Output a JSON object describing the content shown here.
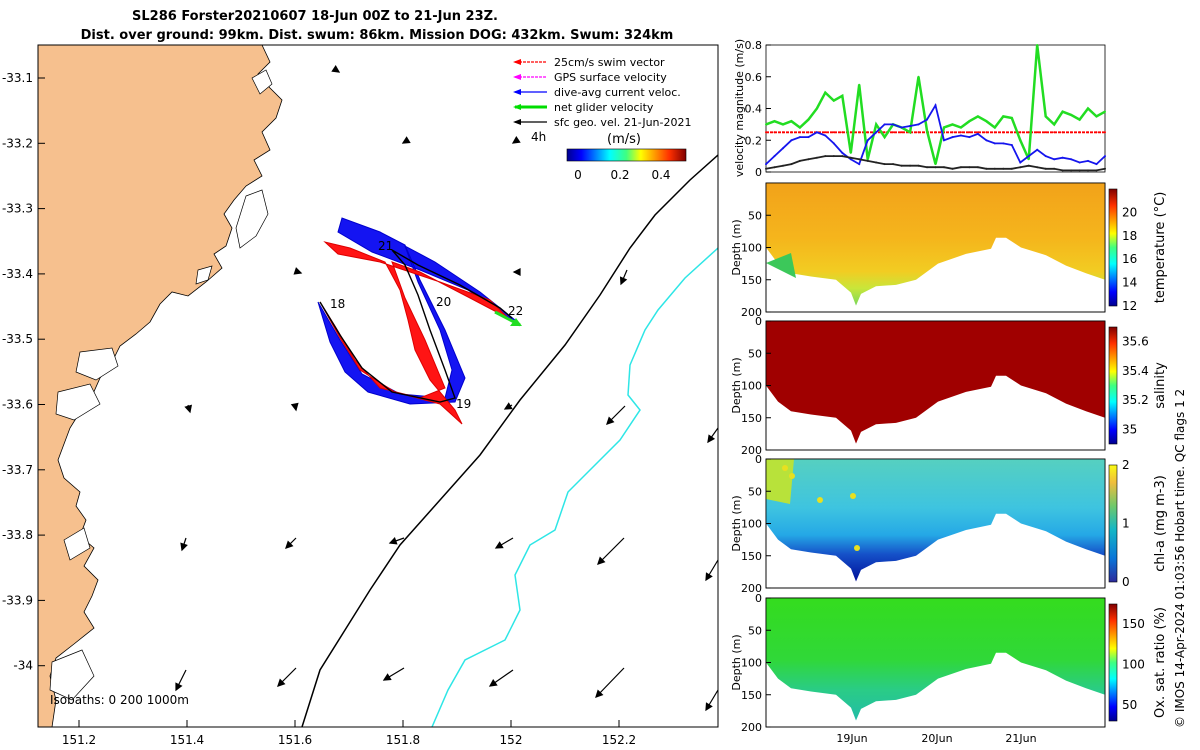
{
  "title": {
    "line1": "SL286 Forster20210607 18-Jun 00Z to 21-Jun 23Z.",
    "line2": "Dist. over ground: 99km. Dist. swum: 86km. Mission DOG: 432km. Swum: 324km"
  },
  "map": {
    "lon_ticks": [
      "151.2",
      "151.4",
      "151.6",
      "151.8",
      "152",
      "152.2"
    ],
    "lat_ticks": [
      "-33.1",
      "-33.2",
      "-33.3",
      "-33.4",
      "-33.5",
      "-33.6",
      "-33.7",
      "-33.8",
      "-33.9",
      "-34"
    ],
    "legend": [
      {
        "label": "25cm/s swim vector",
        "color": "#ff0000"
      },
      {
        "label": "GPS surface velocity",
        "color": "#ff00ff"
      },
      {
        "label": "dive-avg current veloc.",
        "color": "#0000ff"
      },
      {
        "label": "net glider velocity",
        "color": "#00dd00"
      },
      {
        "label": "sfc geo. vel. 21-Jun-2021",
        "color": "#000000"
      }
    ],
    "interval_label": "4h",
    "colorbar": {
      "unit": "(m/s)",
      "ticks": [
        "0",
        "0.2",
        "0.4"
      ]
    },
    "day_labels": [
      "18",
      "19",
      "20",
      "21",
      "22"
    ],
    "isobaths": "Isobaths: 0  200  1000m",
    "land_color": "#f6c08e"
  },
  "chart_data": [
    {
      "type": "line",
      "name": "velocity-magnitude",
      "ylabel": "velocity magnitude (m/s)",
      "ylim": [
        0,
        0.8
      ],
      "yticks": [
        "0",
        "0.2",
        "0.4",
        "0.6",
        "0.8"
      ],
      "x_days": [
        0,
        0.1,
        0.2,
        0.3,
        0.4,
        0.5,
        0.6,
        0.7,
        0.8,
        0.9,
        1.0,
        1.1,
        1.2,
        1.3,
        1.4,
        1.5,
        1.6,
        1.7,
        1.8,
        1.9,
        2.0,
        2.1,
        2.2,
        2.3,
        2.4,
        2.5,
        2.6,
        2.7,
        2.8,
        2.9,
        3.0,
        3.1,
        3.2,
        3.3,
        3.4,
        3.5,
        3.6,
        3.7,
        3.8,
        3.9,
        4.0
      ],
      "series": [
        {
          "name": "swim vector 25cm/s",
          "color": "#ff0000",
          "values": [
            0.25,
            0.25,
            0.25,
            0.25,
            0.25,
            0.25,
            0.25,
            0.25,
            0.25,
            0.25,
            0.25,
            0.25,
            0.25,
            0.25,
            0.25,
            0.25,
            0.25,
            0.25,
            0.25,
            0.25,
            0.25,
            0.25,
            0.25,
            0.25,
            0.25,
            0.25,
            0.25,
            0.25,
            0.25,
            0.25,
            0.25,
            0.25,
            0.25,
            0.25,
            0.25,
            0.25,
            0.25,
            0.25,
            0.25,
            0.25,
            0.25
          ]
        },
        {
          "name": "net glider velocity",
          "color": "#22dd22",
          "values": [
            0.3,
            0.32,
            0.3,
            0.32,
            0.28,
            0.33,
            0.4,
            0.5,
            0.45,
            0.48,
            0.12,
            0.55,
            0.08,
            0.3,
            0.22,
            0.3,
            0.28,
            0.25,
            0.6,
            0.26,
            0.05,
            0.28,
            0.3,
            0.28,
            0.32,
            0.35,
            0.32,
            0.28,
            0.35,
            0.34,
            0.2,
            0.08,
            0.8,
            0.35,
            0.3,
            0.38,
            0.36,
            0.33,
            0.4,
            0.35,
            0.38
          ]
        },
        {
          "name": "dive-avg current",
          "color": "#1515ee",
          "values": [
            0.05,
            0.1,
            0.15,
            0.2,
            0.22,
            0.22,
            0.25,
            0.23,
            0.18,
            0.12,
            0.08,
            0.05,
            0.2,
            0.25,
            0.3,
            0.3,
            0.28,
            0.29,
            0.3,
            0.33,
            0.42,
            0.2,
            0.22,
            0.23,
            0.22,
            0.24,
            0.2,
            0.18,
            0.18,
            0.17,
            0.06,
            0.1,
            0.14,
            0.1,
            0.08,
            0.09,
            0.08,
            0.06,
            0.07,
            0.05,
            0.1
          ]
        },
        {
          "name": "sfc geo vel",
          "color": "#222222",
          "values": [
            0.02,
            0.03,
            0.04,
            0.05,
            0.07,
            0.08,
            0.09,
            0.1,
            0.1,
            0.1,
            0.09,
            0.08,
            0.07,
            0.06,
            0.05,
            0.05,
            0.04,
            0.04,
            0.04,
            0.03,
            0.03,
            0.03,
            0.02,
            0.03,
            0.03,
            0.03,
            0.02,
            0.02,
            0.02,
            0.02,
            0.03,
            0.04,
            0.03,
            0.02,
            0.02,
            0.01,
            0.01,
            0.01,
            0.01,
            0.01,
            0.02
          ]
        }
      ]
    },
    {
      "type": "heatmap",
      "name": "temperature",
      "clabel": "temperature (°C)",
      "ylabel": "Depth (m)",
      "ylim": [
        0,
        200
      ],
      "clim": [
        12,
        22
      ],
      "cticks": [
        "12",
        "14",
        "16",
        "18",
        "20"
      ],
      "yticks": [
        "50",
        "100",
        "150",
        "200"
      ]
    },
    {
      "type": "heatmap",
      "name": "salinity",
      "clabel": "salinity",
      "ylabel": "Depth (m)",
      "ylim": [
        0,
        200
      ],
      "clim": [
        34.9,
        35.7
      ],
      "cticks": [
        "35",
        "35.2",
        "35.4",
        "35.6"
      ],
      "yticks": [
        "0",
        "50",
        "100",
        "150",
        "200"
      ]
    },
    {
      "type": "heatmap",
      "name": "chl-a",
      "clabel": "chl-a (mg m-3)",
      "ylabel": "Depth (m)",
      "ylim": [
        0,
        200
      ],
      "clim": [
        0,
        2
      ],
      "cticks": [
        "0",
        "1",
        "2"
      ],
      "yticks": [
        "0",
        "50",
        "100",
        "150",
        "200"
      ]
    },
    {
      "type": "heatmap",
      "name": "oxygen",
      "clabel": "Ox. sat. ratio (%)",
      "ylabel": "Depth (m)",
      "ylim": [
        0,
        200
      ],
      "clim": [
        30,
        175
      ],
      "cticks": [
        "50",
        "100",
        "150"
      ],
      "yticks": [
        "0",
        "50",
        "100",
        "150",
        "200"
      ]
    }
  ],
  "time_axis": [
    "19Jun",
    "20Jun",
    "21Jun"
  ],
  "credit": "© IMOS 14-Apr-2024 01:03:56 Hobart time. QC flags 1  2"
}
